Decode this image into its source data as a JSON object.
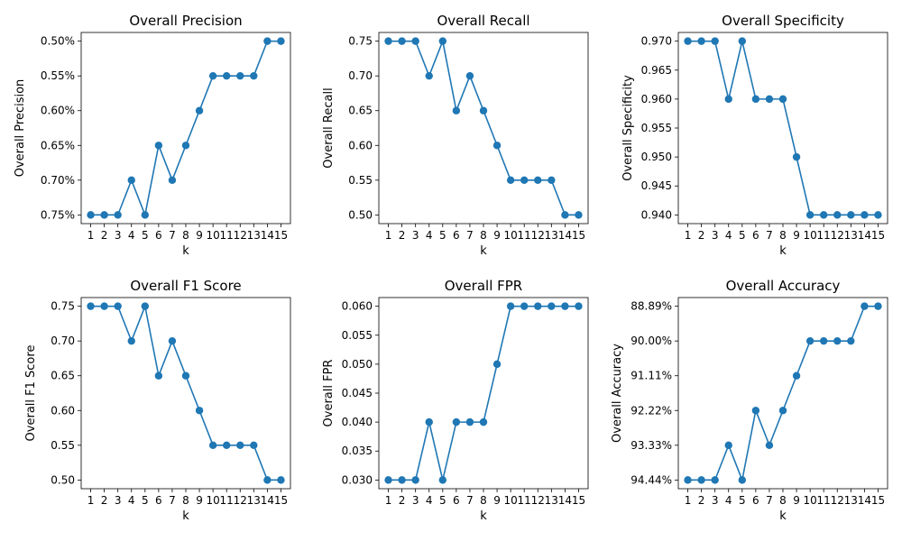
{
  "chart_data": [
    {
      "type": "line",
      "title": "Overall Precision",
      "xlabel": "k",
      "ylabel": "Overall Precision",
      "x": [
        1,
        2,
        3,
        4,
        5,
        6,
        7,
        8,
        9,
        10,
        11,
        12,
        13,
        14,
        15
      ],
      "y_categorical": true,
      "y_ticks": [
        "0.50%",
        "0.55%",
        "0.60%",
        "0.65%",
        "0.70%",
        "0.75%"
      ],
      "values": [
        "0.75%",
        "0.75%",
        "0.75%",
        "0.70%",
        "0.75%",
        "0.65%",
        "0.70%",
        "0.65%",
        "0.60%",
        "0.55%",
        "0.55%",
        "0.55%",
        "0.55%",
        "0.50%",
        "0.50%"
      ],
      "color": "#1f77b4"
    },
    {
      "type": "line",
      "title": "Overall Recall",
      "xlabel": "k",
      "ylabel": "Overall Recall",
      "x": [
        1,
        2,
        3,
        4,
        5,
        6,
        7,
        8,
        9,
        10,
        11,
        12,
        13,
        14,
        15
      ],
      "y_ticks": [
        "0.75",
        "0.70",
        "0.65",
        "0.60",
        "0.55",
        "0.50"
      ],
      "ylim": [
        0.4875,
        0.7625
      ],
      "values": [
        0.75,
        0.75,
        0.75,
        0.7,
        0.75,
        0.65,
        0.7,
        0.65,
        0.6,
        0.55,
        0.55,
        0.55,
        0.55,
        0.5,
        0.5
      ],
      "color": "#1f77b4"
    },
    {
      "type": "line",
      "title": "Overall Specificity",
      "xlabel": "k",
      "ylabel": "Overall Specificity",
      "x": [
        1,
        2,
        3,
        4,
        5,
        6,
        7,
        8,
        9,
        10,
        11,
        12,
        13,
        14,
        15
      ],
      "y_ticks": [
        "0.970",
        "0.965",
        "0.960",
        "0.955",
        "0.950",
        "0.945",
        "0.940"
      ],
      "ylim": [
        0.9385,
        0.9715
      ],
      "values": [
        0.97,
        0.97,
        0.97,
        0.96,
        0.97,
        0.96,
        0.96,
        0.96,
        0.95,
        0.94,
        0.94,
        0.94,
        0.94,
        0.94,
        0.94
      ],
      "color": "#1f77b4"
    },
    {
      "type": "line",
      "title": "Overall F1 Score",
      "xlabel": "k",
      "ylabel": "Overall F1 Score",
      "x": [
        1,
        2,
        3,
        4,
        5,
        6,
        7,
        8,
        9,
        10,
        11,
        12,
        13,
        14,
        15
      ],
      "y_ticks": [
        "0.75",
        "0.70",
        "0.65",
        "0.60",
        "0.55",
        "0.50"
      ],
      "ylim": [
        0.4875,
        0.7625
      ],
      "values": [
        0.75,
        0.75,
        0.75,
        0.7,
        0.75,
        0.65,
        0.7,
        0.65,
        0.6,
        0.55,
        0.55,
        0.55,
        0.55,
        0.5,
        0.5
      ],
      "color": "#1f77b4"
    },
    {
      "type": "line",
      "title": "Overall FPR",
      "xlabel": "k",
      "ylabel": "Overall FPR",
      "x": [
        1,
        2,
        3,
        4,
        5,
        6,
        7,
        8,
        9,
        10,
        11,
        12,
        13,
        14,
        15
      ],
      "y_ticks": [
        "0.060",
        "0.055",
        "0.050",
        "0.045",
        "0.040",
        "0.035",
        "0.030"
      ],
      "ylim": [
        0.0285,
        0.0615
      ],
      "values": [
        0.03,
        0.03,
        0.03,
        0.04,
        0.03,
        0.04,
        0.04,
        0.04,
        0.05,
        0.06,
        0.06,
        0.06,
        0.06,
        0.06,
        0.06
      ],
      "color": "#1f77b4"
    },
    {
      "type": "line",
      "title": "Overall Accuracy",
      "xlabel": "k",
      "ylabel": "Overall Accuracy",
      "x": [
        1,
        2,
        3,
        4,
        5,
        6,
        7,
        8,
        9,
        10,
        11,
        12,
        13,
        14,
        15
      ],
      "y_categorical": true,
      "y_ticks": [
        "88.89%",
        "90.00%",
        "91.11%",
        "92.22%",
        "93.33%",
        "94.44%"
      ],
      "values": [
        "94.44%",
        "94.44%",
        "94.44%",
        "93.33%",
        "94.44%",
        "92.22%",
        "93.33%",
        "92.22%",
        "91.11%",
        "90.00%",
        "90.00%",
        "90.00%",
        "90.00%",
        "88.89%",
        "88.89%"
      ],
      "color": "#1f77b4"
    }
  ]
}
